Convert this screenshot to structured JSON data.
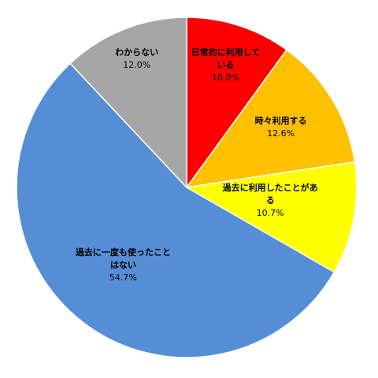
{
  "chart_data": {
    "type": "pie",
    "categories": [
      "日常的に利用している",
      "時々利用する",
      "過去に利用したことがある",
      "過去に一度も使ったことはない",
      "わからない"
    ],
    "values": [
      10.0,
      12.6,
      10.7,
      54.7,
      12.0
    ],
    "value_labels": [
      "10.0%",
      "12.6%",
      "10.7%",
      "54.7%",
      "12.0%"
    ],
    "colors": [
      "#ff0000",
      "#ffc000",
      "#ffff00",
      "#558ed5",
      "#a6a6a6"
    ]
  }
}
